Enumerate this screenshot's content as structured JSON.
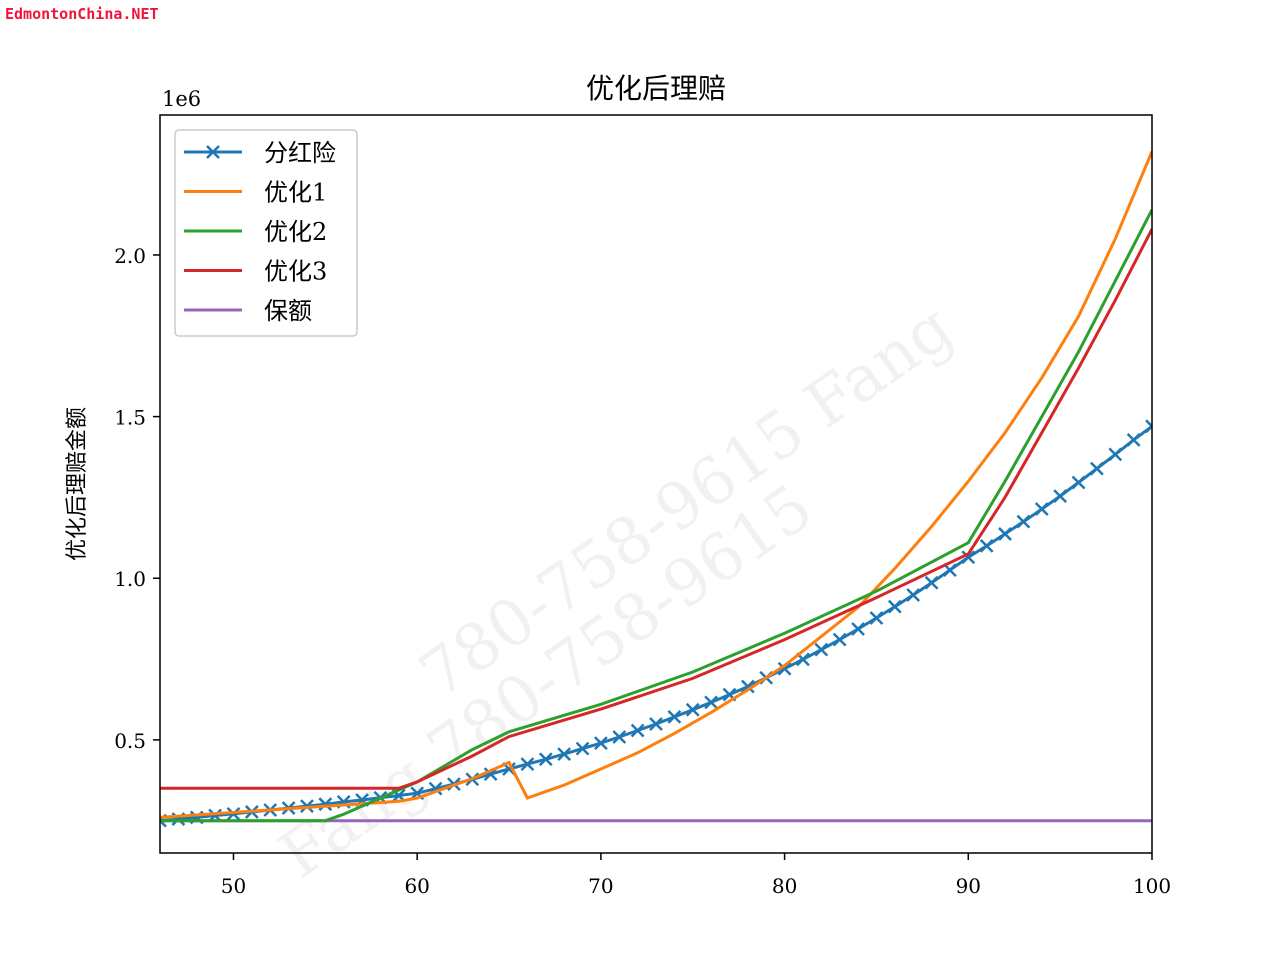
{
  "logo": "EdmontonChina.NET",
  "watermark": [
    "Fang 780-758-9615",
    "Fang 780-758-9615"
  ],
  "chart_data": {
    "type": "line",
    "title": "优化后理赔",
    "xlabel": "",
    "ylabel": "优化后理赔金额",
    "y_offset_label": "1e6",
    "xlim": [
      46,
      100
    ],
    "ylim": [
      0.15,
      2.433
    ],
    "y_scale_factor": 1000000,
    "x_ticks": [
      50,
      60,
      70,
      80,
      90,
      100
    ],
    "y_ticks": [
      0.5,
      1.0,
      1.5,
      2.0
    ],
    "y_tick_labels": [
      "0.5",
      "1.0",
      "1.5",
      "2.0"
    ],
    "grid": false,
    "legend_position": "top-left",
    "series": [
      {
        "name": "分红险",
        "color": "#1f77b4",
        "marker": "x",
        "x": [
          46,
          47,
          48,
          49,
          50,
          51,
          52,
          53,
          54,
          55,
          56,
          57,
          58,
          59,
          60,
          61,
          62,
          63,
          64,
          65,
          66,
          67,
          68,
          69,
          70,
          71,
          72,
          73,
          74,
          75,
          76,
          77,
          78,
          79,
          80,
          81,
          82,
          83,
          84,
          85,
          86,
          87,
          88,
          89,
          90,
          91,
          92,
          93,
          94,
          95,
          96,
          97,
          98,
          99,
          100
        ],
        "y": [
          0.25,
          0.255,
          0.26,
          0.266,
          0.271,
          0.277,
          0.283,
          0.289,
          0.295,
          0.301,
          0.308,
          0.314,
          0.321,
          0.328,
          0.335,
          0.349,
          0.363,
          0.378,
          0.394,
          0.41,
          0.425,
          0.44,
          0.456,
          0.473,
          0.49,
          0.509,
          0.529,
          0.549,
          0.571,
          0.593,
          0.616,
          0.64,
          0.665,
          0.692,
          0.72,
          0.749,
          0.779,
          0.81,
          0.843,
          0.877,
          0.912,
          0.948,
          0.986,
          1.025,
          1.065,
          1.1,
          1.137,
          1.175,
          1.214,
          1.254,
          1.296,
          1.339,
          1.383,
          1.428,
          1.47
        ]
      },
      {
        "name": "优化1",
        "color": "#ff7f0e",
        "marker": "",
        "x": [
          46,
          59,
          60,
          61,
          62,
          63,
          64,
          65,
          66,
          68,
          70,
          72,
          74,
          76,
          78,
          80,
          82,
          84,
          86,
          88,
          90,
          92,
          94,
          96,
          98,
          100
        ],
        "y": [
          0.26,
          0.31,
          0.32,
          0.34,
          0.36,
          0.38,
          0.405,
          0.43,
          0.32,
          0.36,
          0.41,
          0.46,
          0.52,
          0.585,
          0.655,
          0.73,
          0.82,
          0.91,
          1.03,
          1.16,
          1.3,
          1.45,
          1.62,
          1.81,
          2.05,
          2.32
        ]
      },
      {
        "name": "优化2",
        "color": "#2ca02c",
        "marker": "",
        "x": [
          46,
          55,
          56,
          58,
          60,
          63,
          65,
          70,
          75,
          80,
          85,
          90,
          92,
          94,
          96,
          98,
          100
        ],
        "y": [
          0.25,
          0.25,
          0.27,
          0.32,
          0.37,
          0.47,
          0.525,
          0.61,
          0.71,
          0.83,
          0.96,
          1.11,
          1.3,
          1.5,
          1.7,
          1.92,
          2.14
        ]
      },
      {
        "name": "优化3",
        "color": "#d62728",
        "marker": "",
        "x": [
          46,
          59,
          60,
          63,
          65,
          70,
          75,
          80,
          85,
          90,
          92,
          94,
          96,
          98,
          100
        ],
        "y": [
          0.35,
          0.35,
          0.37,
          0.45,
          0.51,
          0.595,
          0.69,
          0.81,
          0.94,
          1.075,
          1.25,
          1.45,
          1.65,
          1.86,
          2.08
        ]
      },
      {
        "name": "保额",
        "color": "#9467bd",
        "marker": "",
        "x": [
          46,
          100
        ],
        "y": [
          0.25,
          0.25
        ]
      }
    ]
  }
}
